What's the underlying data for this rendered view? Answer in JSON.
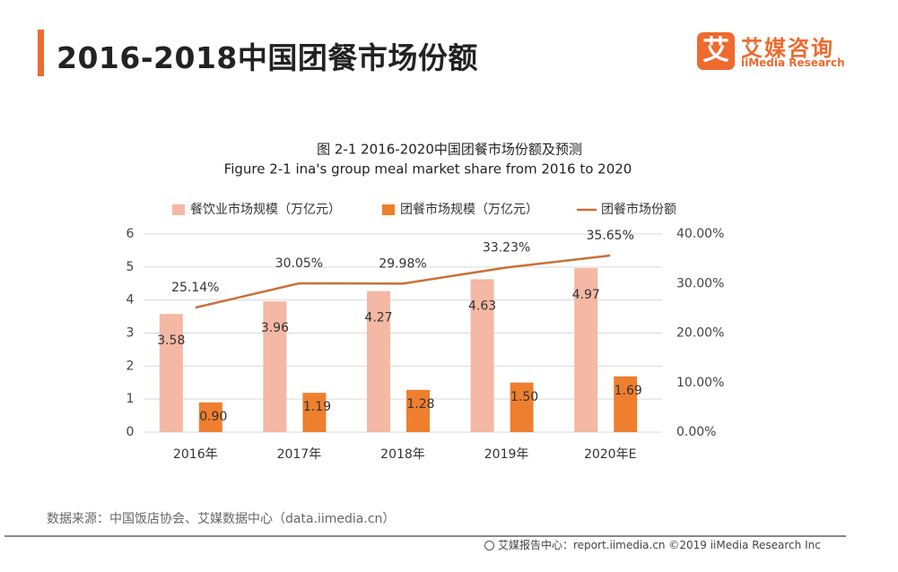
{
  "header": {
    "title": "2016-2018中国团餐市场份额",
    "logo_mark": "艾",
    "logo_cn": "艾媒咨询",
    "logo_en": "iiMedia Research"
  },
  "colors": {
    "accent": "#ee6a2e",
    "bar_light": "#f4b8a4",
    "bar_dark": "#ee7f2e",
    "line": "#c9703a"
  },
  "chart_data": {
    "type": "bar",
    "title": "图 2-1 2016-2020中国团餐市场份额及预测",
    "subtitle": "Figure 2-1 ina's group meal market share from 2016 to 2020",
    "categories": [
      "2016年",
      "2017年",
      "2018年",
      "2019年",
      "2020年E"
    ],
    "series": [
      {
        "name": "餐饮业市场规模（万亿元）",
        "type": "bar",
        "axis": "left",
        "color": "#f4b8a4",
        "values": [
          3.58,
          3.96,
          4.27,
          4.63,
          4.97
        ],
        "labels": [
          "3.58",
          "3.96",
          "4.27",
          "4.63",
          "4.97"
        ]
      },
      {
        "name": "团餐市场规模（万亿元）",
        "type": "bar",
        "axis": "left",
        "color": "#ee7f2e",
        "values": [
          0.9,
          1.19,
          1.28,
          1.5,
          1.69
        ],
        "labels": [
          "0.90",
          "1.19",
          "1.28",
          "1.50",
          "1.69"
        ]
      },
      {
        "name": "团餐市场份额",
        "type": "line",
        "axis": "right",
        "color": "#c9703a",
        "values": [
          25.14,
          30.05,
          29.98,
          33.23,
          35.65
        ],
        "labels": [
          "25.14%",
          "30.05%",
          "29.98%",
          "33.23%",
          "35.65%"
        ]
      }
    ],
    "y_left": {
      "range": [
        0,
        6
      ],
      "ticks": [
        "0",
        "1",
        "2",
        "3",
        "4",
        "5",
        "6"
      ]
    },
    "y_right": {
      "range": [
        0,
        40
      ],
      "ticks": [
        "0.00%",
        "10.00%",
        "20.00%",
        "30.00%",
        "40.00%"
      ]
    },
    "grid": true,
    "legend_position": "top"
  },
  "source": "数据来源：中国饭店协会、艾媒数据中心（data.iimedia.cn）",
  "footer": "艾媒报告中心：report.iimedia.cn ©2019 iiMedia Research Inc"
}
